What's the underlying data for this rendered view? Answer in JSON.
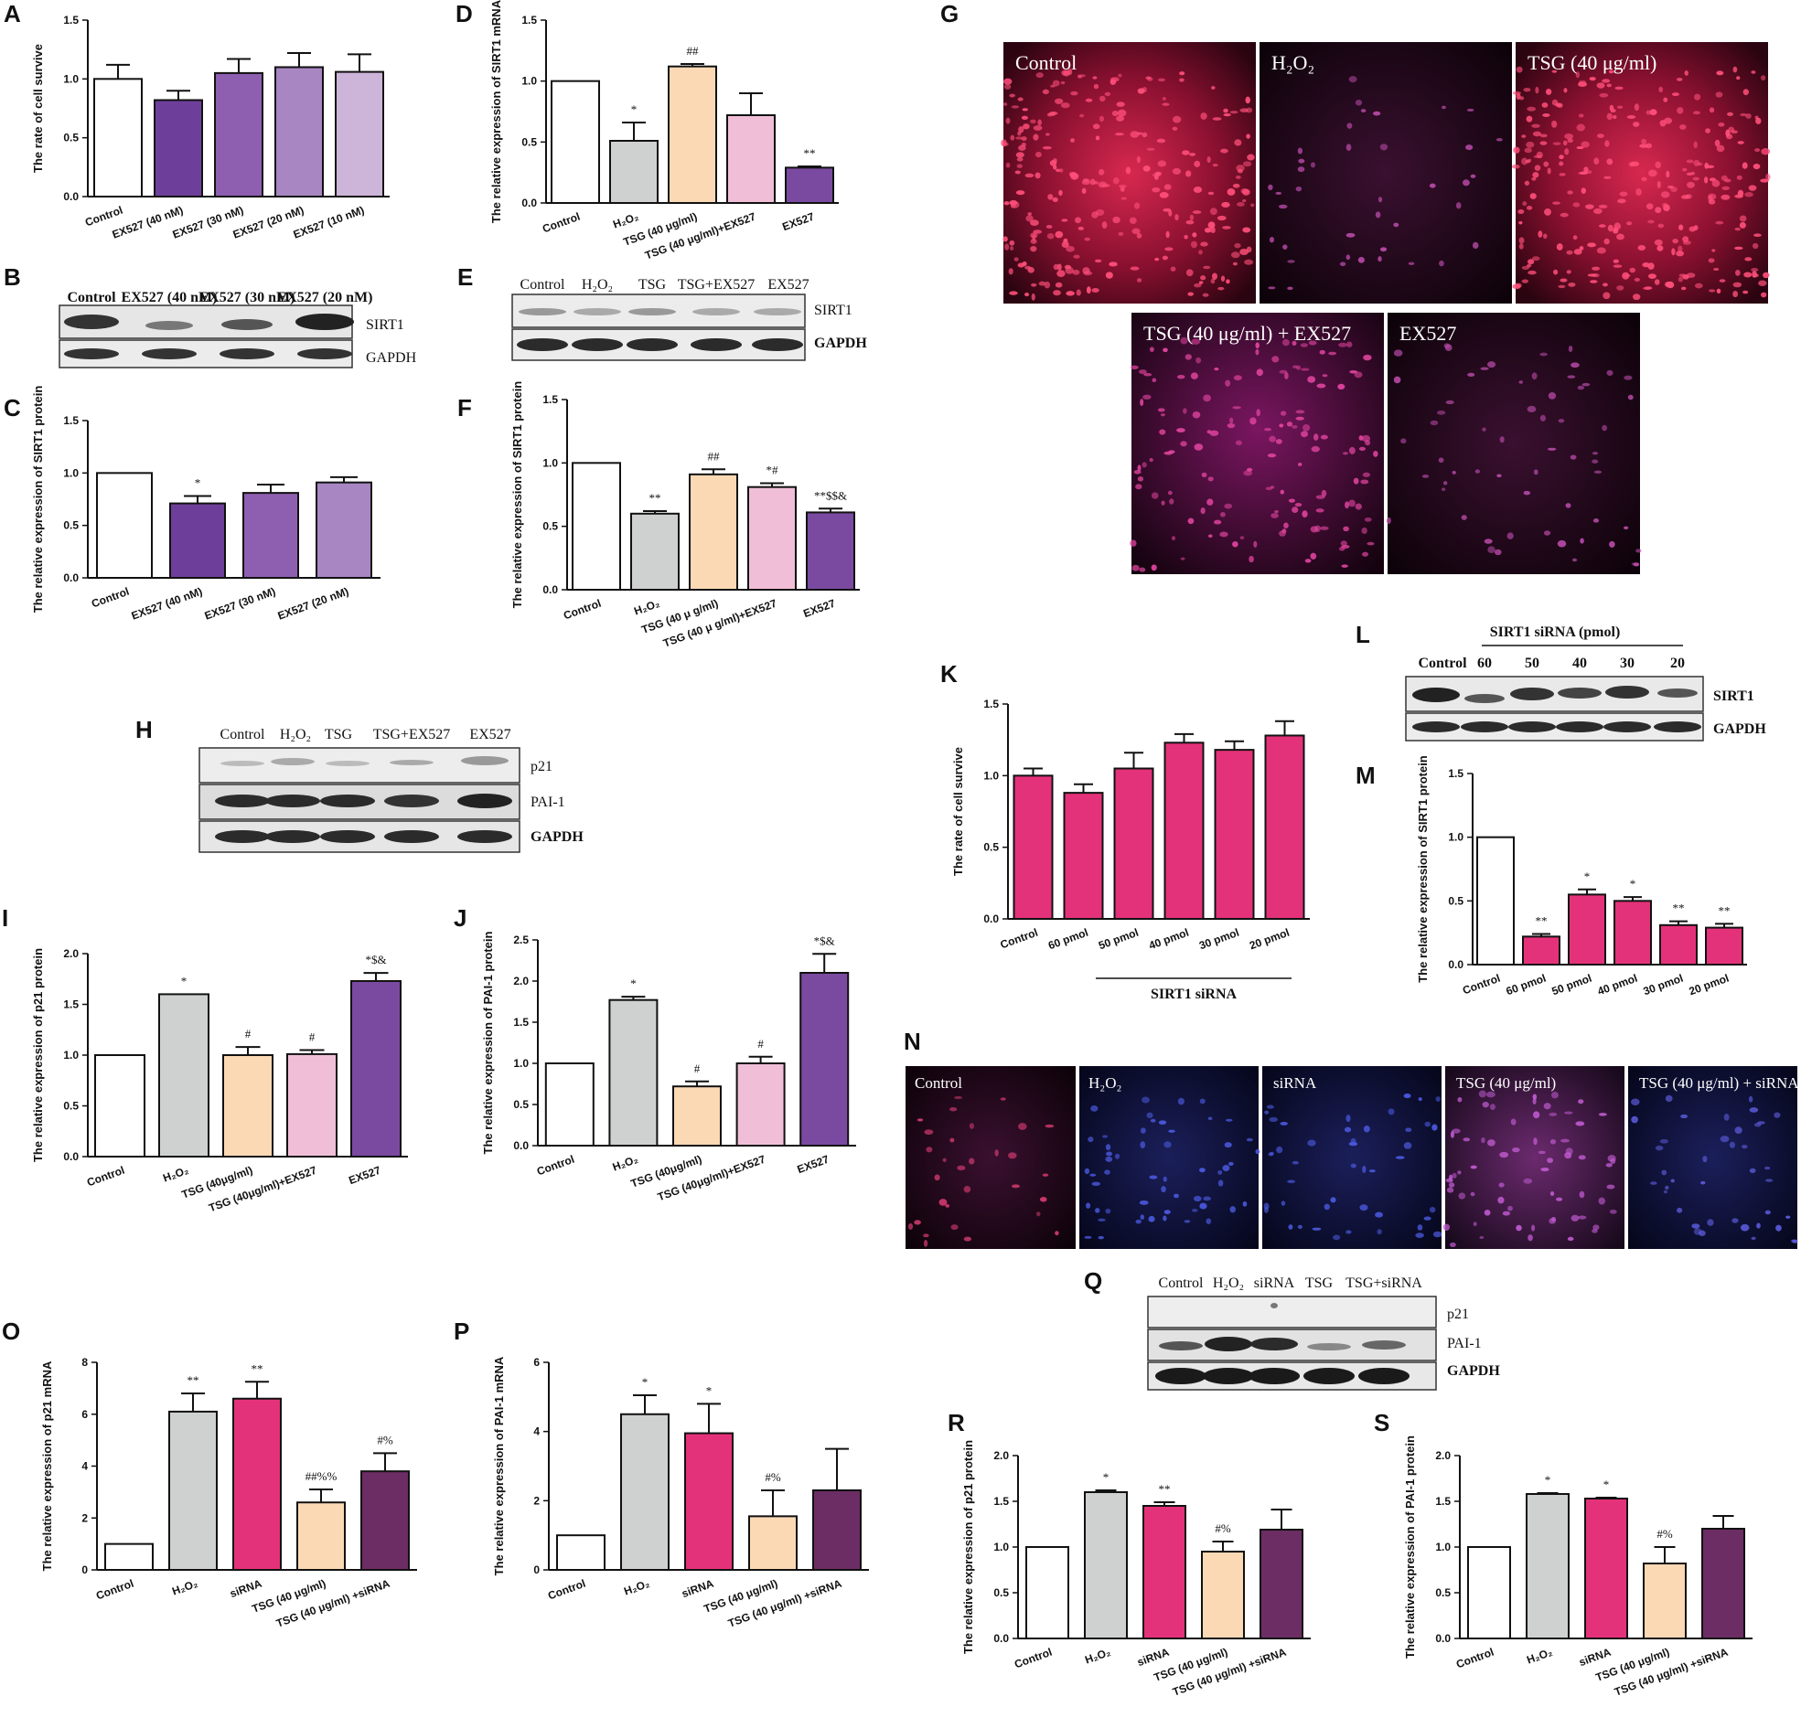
{
  "colors": {
    "white": "#ffffff",
    "purple_dark": "#6e3f9a",
    "purple_mid": "#8e5eb0",
    "purple_light": "#a886c2",
    "purple_pale": "#cdb4d9",
    "gray": "#cfd0d0",
    "peach": "#fbd9b5",
    "pink_light": "#f0bfd7",
    "violet": "#7a4aa0",
    "magenta": "#e4327a",
    "plum": "#6b2d63"
  },
  "panels": {
    "A": "A",
    "B": "B",
    "C": "C",
    "D": "D",
    "E": "E",
    "F": "F",
    "G": "G",
    "H": "H",
    "I": "I",
    "J": "J",
    "K": "K",
    "L": "L",
    "M": "M",
    "N": "N",
    "O": "O",
    "P": "P",
    "Q": "Q",
    "R": "R",
    "S": "S"
  },
  "chart_data": [
    {
      "panel": "A",
      "type": "bar",
      "ylabel": "The rate of cell survive",
      "ylim": [
        0,
        1.5
      ],
      "yticks": [
        "0.0",
        "0.5",
        "1.0",
        "1.5"
      ],
      "categories": [
        "Control",
        "EX527 (40 nM)",
        "EX527 (30 nM)",
        "EX527 (20 nM)",
        "EX527 (10 nM)"
      ],
      "values": [
        1.0,
        0.82,
        1.05,
        1.1,
        1.06
      ],
      "errors": [
        0.12,
        0.08,
        0.12,
        0.12,
        0.15
      ],
      "annotations": [
        "",
        "",
        "",
        "",
        ""
      ],
      "colors": [
        "white",
        "purple_dark",
        "purple_mid",
        "purple_light",
        "purple_pale"
      ]
    },
    {
      "panel": "C",
      "type": "bar",
      "ylabel": "The relative expression of SIRT1 protein",
      "ylim": [
        0,
        1.5
      ],
      "yticks": [
        "0.0",
        "0.5",
        "1.0",
        "1.5"
      ],
      "categories": [
        "Control",
        "EX527 (40 nM)",
        "EX527 (30 nM)",
        "EX527 (20 nM)"
      ],
      "values": [
        1.0,
        0.71,
        0.81,
        0.91
      ],
      "errors": [
        0,
        0.07,
        0.08,
        0.05
      ],
      "annotations": [
        "",
        "*",
        "",
        ""
      ],
      "colors": [
        "white",
        "purple_dark",
        "purple_mid",
        "purple_light"
      ]
    },
    {
      "panel": "D",
      "type": "bar",
      "ylabel": "The relative expression of SIRT1 mRNA",
      "ylim": [
        0,
        1.5
      ],
      "yticks": [
        "0.0",
        "0.5",
        "1.0",
        "1.5"
      ],
      "categories": [
        "Control",
        "H₂O₂",
        "TSG (40 μg/ml)",
        "TSG (40 μg/ml)+EX527",
        "EX527"
      ],
      "values": [
        1.0,
        0.51,
        1.12,
        0.72,
        0.29
      ],
      "errors": [
        0,
        0.15,
        0.02,
        0.18,
        0.01
      ],
      "annotations": [
        "",
        "*",
        "##",
        "",
        "**"
      ],
      "colors": [
        "white",
        "gray",
        "peach",
        "pink_light",
        "violet"
      ]
    },
    {
      "panel": "F",
      "type": "bar",
      "ylabel": "The relative expression of SIRT1 protein",
      "ylim": [
        0,
        1.5
      ],
      "yticks": [
        "0.0",
        "0.5",
        "1.0",
        "1.5"
      ],
      "categories": [
        "Control",
        "H₂O₂",
        "TSG (40 μ g/ml)",
        "TSG (40 μ g/ml)+EX527",
        "EX527"
      ],
      "values": [
        1.0,
        0.6,
        0.91,
        0.81,
        0.61
      ],
      "errors": [
        0,
        0.02,
        0.04,
        0.03,
        0.03
      ],
      "annotations": [
        "",
        "**",
        "##",
        "*#",
        "**$$&"
      ],
      "colors": [
        "white",
        "gray",
        "peach",
        "pink_light",
        "violet"
      ]
    },
    {
      "panel": "I",
      "type": "bar",
      "ylabel": "The relative expression of p21 protein",
      "ylim": [
        0,
        2.0
      ],
      "yticks": [
        "0.0",
        "0.5",
        "1.0",
        "1.5",
        "2.0"
      ],
      "categories": [
        "Control",
        "H₂O₂",
        "TSG (40μg/ml)",
        "TSG (40μg/ml)+EX527",
        "EX527"
      ],
      "values": [
        1.0,
        1.6,
        1.0,
        1.01,
        1.73
      ],
      "errors": [
        0,
        0,
        0.08,
        0.04,
        0.08
      ],
      "annotations": [
        "",
        "*",
        "#",
        "#",
        "*$&"
      ],
      "colors": [
        "white",
        "gray",
        "peach",
        "pink_light",
        "violet"
      ]
    },
    {
      "panel": "J",
      "type": "bar",
      "ylabel": "The relative expression of PAI-1 protein",
      "ylim": [
        0,
        2.5
      ],
      "yticks": [
        "0.0",
        "0.5",
        "1.0",
        "1.5",
        "2.0",
        "2.5"
      ],
      "categories": [
        "Control",
        "H₂O₂",
        "TSG (40μg/ml)",
        "TSG (40μg/ml)+EX527",
        "EX527"
      ],
      "values": [
        1.0,
        1.77,
        0.72,
        1.0,
        2.1
      ],
      "errors": [
        0,
        0.04,
        0.06,
        0.08,
        0.23
      ],
      "annotations": [
        "",
        "*",
        "#",
        "#",
        "*$&"
      ],
      "colors": [
        "white",
        "gray",
        "peach",
        "pink_light",
        "violet"
      ]
    },
    {
      "panel": "K",
      "type": "bar",
      "ylabel": "The rate of cell survive",
      "ylim": [
        0,
        1.5
      ],
      "yticks": [
        "0.0",
        "0.5",
        "1.0",
        "1.5"
      ],
      "categories": [
        "Control",
        "60 pmol",
        "50 pmol",
        "40 pmol",
        "30 pmol",
        "20 pmol"
      ],
      "values": [
        1.0,
        0.88,
        1.05,
        1.23,
        1.18,
        1.28
      ],
      "errors": [
        0.05,
        0.06,
        0.11,
        0.06,
        0.06,
        0.1
      ],
      "annotations": [
        "",
        "",
        "",
        "",
        "",
        ""
      ],
      "colors": [
        "magenta",
        "magenta",
        "magenta",
        "magenta",
        "magenta",
        "magenta"
      ],
      "group_label": "SIRT1 siRNA"
    },
    {
      "panel": "M",
      "type": "bar",
      "ylabel": "The relative expression of SIRT1 protein",
      "ylim": [
        0,
        1.5
      ],
      "yticks": [
        "0.0",
        "0.5",
        "1.0",
        "1.5"
      ],
      "categories": [
        "Control",
        "60 pmol",
        "50 pmol",
        "40 pmol",
        "30 pmol",
        "20 pmol"
      ],
      "values": [
        1.0,
        0.22,
        0.55,
        0.5,
        0.31,
        0.29
      ],
      "errors": [
        0,
        0.02,
        0.04,
        0.03,
        0.03,
        0.03
      ],
      "annotations": [
        "",
        "**",
        "*",
        "*",
        "**",
        "**"
      ],
      "colors": [
        "white",
        "magenta",
        "magenta",
        "magenta",
        "magenta",
        "magenta"
      ]
    },
    {
      "panel": "O",
      "type": "bar",
      "ylabel": "The relative expression of p21 mRNA",
      "ylim": [
        0,
        8
      ],
      "yticks": [
        "0",
        "2",
        "4",
        "6",
        "8"
      ],
      "categories": [
        "Control",
        "H₂O₂",
        "siRNA",
        "TSG (40 μg/ml)",
        "TSG (40 μg/ml) +siRNA"
      ],
      "values": [
        1.0,
        6.1,
        6.6,
        2.6,
        3.8
      ],
      "errors": [
        0,
        0.7,
        0.65,
        0.5,
        0.7
      ],
      "annotations": [
        "",
        "**",
        "**",
        "##%%",
        "#%"
      ],
      "colors": [
        "white",
        "gray",
        "magenta",
        "peach",
        "plum"
      ]
    },
    {
      "panel": "P",
      "type": "bar",
      "ylabel": "The relative expression of PAI-1 mRNA",
      "ylim": [
        0,
        6
      ],
      "yticks": [
        "0",
        "2",
        "4",
        "6"
      ],
      "categories": [
        "Control",
        "H₂O₂",
        "siRNA",
        "TSG (40 μg/ml)",
        "TSG (40 μg/ml) +siRNA"
      ],
      "values": [
        1.0,
        4.5,
        3.95,
        1.55,
        2.3
      ],
      "errors": [
        0,
        0.55,
        0.85,
        0.75,
        1.2
      ],
      "annotations": [
        "",
        "*",
        "*",
        "#%",
        ""
      ],
      "colors": [
        "white",
        "gray",
        "magenta",
        "peach",
        "plum"
      ]
    },
    {
      "panel": "R",
      "type": "bar",
      "ylabel": "The relative expression of p21 protein",
      "ylim": [
        0,
        2.0
      ],
      "yticks": [
        "0.0",
        "0.5",
        "1.0",
        "1.5",
        "2.0"
      ],
      "categories": [
        "Control",
        "H₂O₂",
        "siRNA",
        "TSG (40 μg/ml)",
        "TSG (40 μg/ml) +siRNA"
      ],
      "values": [
        1.0,
        1.6,
        1.45,
        0.95,
        1.19
      ],
      "errors": [
        0,
        0.02,
        0.04,
        0.11,
        0.22
      ],
      "annotations": [
        "",
        "*",
        "**",
        "#%",
        ""
      ],
      "colors": [
        "white",
        "gray",
        "magenta",
        "peach",
        "plum"
      ]
    },
    {
      "panel": "S",
      "type": "bar",
      "ylabel": "The relative expression of PAI-1 protein",
      "ylim": [
        0,
        2.0
      ],
      "yticks": [
        "0.0",
        "0.5",
        "1.0",
        "1.5",
        "2.0"
      ],
      "categories": [
        "Control",
        "H₂O₂",
        "siRNA",
        "TSG (40 μg/ml)",
        "TSG (40 μg/ml) +siRNA"
      ],
      "values": [
        1.0,
        1.58,
        1.53,
        0.82,
        1.2
      ],
      "errors": [
        0,
        0.01,
        0.01,
        0.18,
        0.14
      ],
      "annotations": [
        "",
        "*",
        "*",
        "#%",
        ""
      ],
      "colors": [
        "white",
        "gray",
        "magenta",
        "peach",
        "plum"
      ]
    }
  ],
  "blots": {
    "B": {
      "lanes": [
        "Control",
        "EX527 (40 nM)",
        "EX527 (30 nM)",
        "EX527 (20 nM)"
      ],
      "rows": [
        "SIRT1",
        "GAPDH"
      ]
    },
    "E": {
      "lanes": [
        "Control",
        "H₂O₂",
        "TSG",
        "TSG+EX527",
        "EX527"
      ],
      "rows": [
        "SIRT1",
        "GAPDH"
      ]
    },
    "H": {
      "lanes": [
        "Control",
        "H₂O₂",
        "TSG",
        "TSG+EX527",
        "EX527"
      ],
      "rows": [
        "p21",
        "PAI-1",
        "GAPDH"
      ]
    },
    "L": {
      "header": "SIRT1 siRNA (pmol)",
      "lanes": [
        "Control",
        "60",
        "50",
        "40",
        "30",
        "20"
      ],
      "rows": [
        "SIRT1",
        "GAPDH"
      ]
    },
    "Q": {
      "lanes": [
        "Control",
        "H₂O₂",
        "siRNA",
        "TSG",
        "TSG+siRNA"
      ],
      "rows": [
        "p21",
        "PAI-1",
        "GAPDH"
      ]
    }
  },
  "images": {
    "G": [
      "Control",
      "H₂O₂",
      "TSG (40 μg/ml)",
      "TSG (40 μg/ml) + EX527",
      "EX527"
    ],
    "N": [
      "Control",
      "H₂O₂",
      "siRNA",
      "TSG (40 μg/ml)",
      "TSG (40 μg/ml) + siRNA"
    ]
  }
}
